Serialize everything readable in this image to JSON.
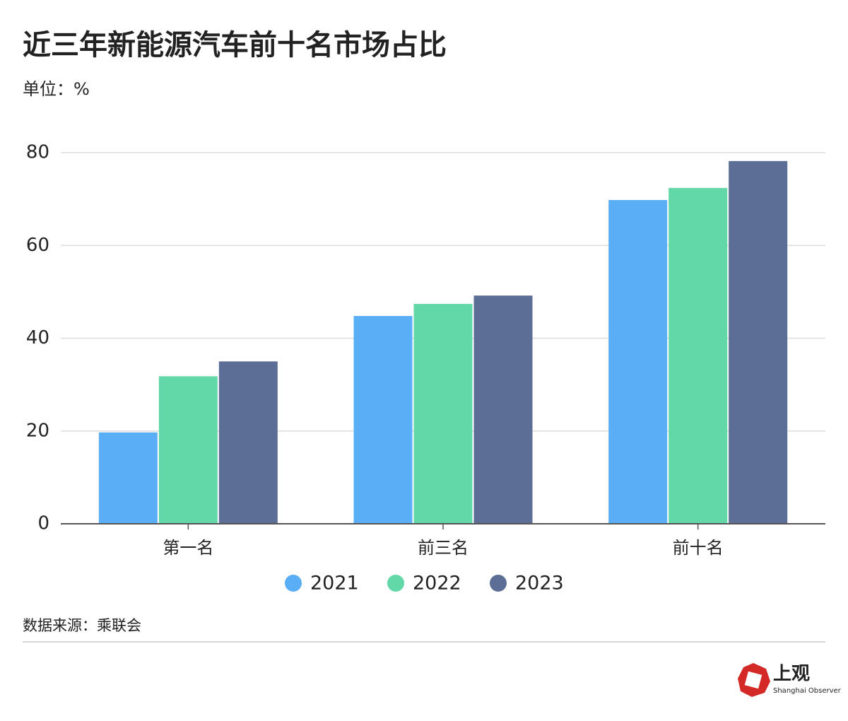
{
  "chart_data": {
    "type": "bar",
    "title": "近三年新能源汽车前十名市场占比",
    "unit_label": "单位：%",
    "categories": [
      "第一名",
      "前三名",
      "前十名"
    ],
    "series": [
      {
        "name": "2021",
        "color": "#5aaef5",
        "values": [
          19.7,
          44.8,
          69.8
        ]
      },
      {
        "name": "2022",
        "color": "#62d8a9",
        "values": [
          31.8,
          47.4,
          72.4
        ]
      },
      {
        "name": "2023",
        "color": "#5c6e96",
        "values": [
          35.0,
          49.2,
          78.2
        ]
      }
    ],
    "ylim": [
      0,
      80
    ],
    "yticks": [
      0,
      20,
      40,
      60,
      80
    ],
    "grid": true,
    "source": "数据来源：乘联会"
  },
  "logo": {
    "text": "上观",
    "subtext": "Shanghai Observer"
  }
}
